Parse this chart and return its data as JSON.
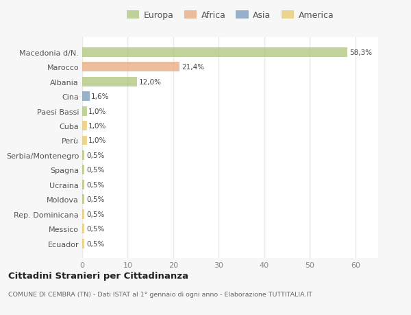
{
  "categories": [
    "Macedonia d/N.",
    "Marocco",
    "Albania",
    "Cina",
    "Paesi Bassi",
    "Cuba",
    "Perù",
    "Serbia/Montenegro",
    "Spagna",
    "Ucraina",
    "Moldova",
    "Rep. Dominicana",
    "Messico",
    "Ecuador"
  ],
  "values": [
    58.3,
    21.4,
    12.0,
    1.6,
    1.0,
    1.0,
    1.0,
    0.5,
    0.5,
    0.5,
    0.5,
    0.5,
    0.5,
    0.5
  ],
  "labels": [
    "58,3%",
    "21,4%",
    "12,0%",
    "1,6%",
    "1,0%",
    "1,0%",
    "1,0%",
    "0,5%",
    "0,5%",
    "0,5%",
    "0,5%",
    "0,5%",
    "0,5%",
    "0,5%"
  ],
  "colors": [
    "#adc47a",
    "#e8a87c",
    "#adc47a",
    "#7899b8",
    "#adc47a",
    "#e8c96a",
    "#e8c96a",
    "#adc47a",
    "#adc47a",
    "#adc47a",
    "#adc47a",
    "#e8c96a",
    "#e8c96a",
    "#e8c96a"
  ],
  "legend_labels": [
    "Europa",
    "Africa",
    "Asia",
    "America"
  ],
  "legend_colors": [
    "#adc47a",
    "#e8a87c",
    "#7899b8",
    "#e8c96a"
  ],
  "xlim": [
    0,
    65
  ],
  "xticks": [
    0,
    10,
    20,
    30,
    40,
    50,
    60
  ],
  "title": "Cittadini Stranieri per Cittadinanza",
  "subtitle": "COMUNE DI CEMBRA (TN) - Dati ISTAT al 1° gennaio di ogni anno - Elaborazione TUTTITALIA.IT",
  "background_color": "#f7f7f7",
  "plot_background": "#ffffff",
  "grid_color": "#e8e8e8",
  "bar_height": 0.65,
  "alpha": 0.75
}
